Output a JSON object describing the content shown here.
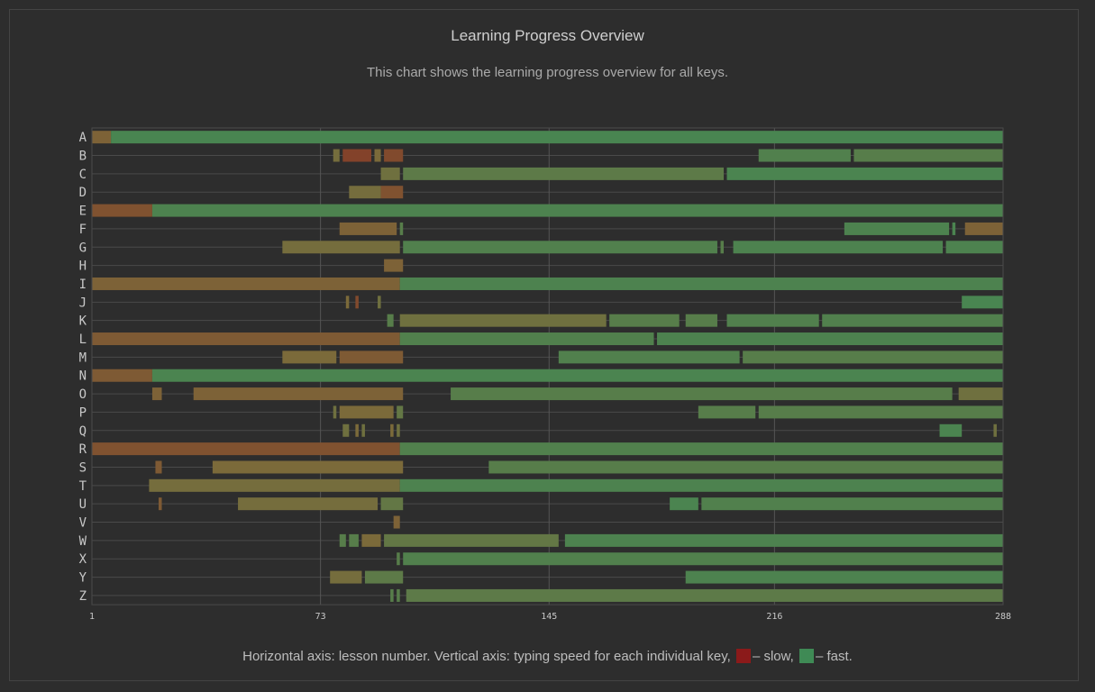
{
  "title": "Learning Progress Overview",
  "subtitle": "This chart shows the learning progress overview for all keys.",
  "footer": {
    "text_before": "Horizontal axis: lesson number. Vertical axis: typing speed for each individual key,",
    "slow_label": "– slow,",
    "fast_label": "– fast."
  },
  "colors": {
    "slow": "#8b1a1a",
    "fast": "#3f8a55",
    "mid": "#7b6a3a",
    "grid": "#555555",
    "text": "#c8c8c8"
  },
  "chart_data": {
    "type": "heatmap",
    "x_ticks": [
      1,
      73,
      145,
      216,
      288
    ],
    "x_range": [
      1,
      288
    ],
    "rows": [
      {
        "key": "A",
        "segments": [
          {
            "start": 1,
            "end": 7,
            "speed": 0.45
          },
          {
            "start": 7,
            "end": 288,
            "speed": 0.92
          }
        ]
      },
      {
        "key": "B",
        "segments": [
          {
            "start": 77,
            "end": 79,
            "speed": 0.55
          },
          {
            "start": 80,
            "end": 89,
            "speed": 0.25
          },
          {
            "start": 90,
            "end": 92,
            "speed": 0.5
          },
          {
            "start": 93,
            "end": 99,
            "speed": 0.3
          },
          {
            "start": 211,
            "end": 240,
            "speed": 0.85
          },
          {
            "start": 241,
            "end": 288,
            "speed": 0.8
          }
        ]
      },
      {
        "key": "C",
        "segments": [
          {
            "start": 92,
            "end": 98,
            "speed": 0.6
          },
          {
            "start": 99,
            "end": 200,
            "speed": 0.75
          },
          {
            "start": 201,
            "end": 288,
            "speed": 0.9
          }
        ]
      },
      {
        "key": "D",
        "segments": [
          {
            "start": 82,
            "end": 92,
            "speed": 0.55
          },
          {
            "start": 92,
            "end": 99,
            "speed": 0.35
          }
        ]
      },
      {
        "key": "E",
        "segments": [
          {
            "start": 1,
            "end": 20,
            "speed": 0.35
          },
          {
            "start": 20,
            "end": 288,
            "speed": 0.88
          }
        ]
      },
      {
        "key": "F",
        "segments": [
          {
            "start": 79,
            "end": 97,
            "speed": 0.45
          },
          {
            "start": 98,
            "end": 99,
            "speed": 0.8
          },
          {
            "start": 238,
            "end": 271,
            "speed": 0.88
          },
          {
            "start": 272,
            "end": 273,
            "speed": 0.9
          },
          {
            "start": 276,
            "end": 288,
            "speed": 0.45
          }
        ]
      },
      {
        "key": "G",
        "segments": [
          {
            "start": 61,
            "end": 98,
            "speed": 0.55
          },
          {
            "start": 99,
            "end": 198,
            "speed": 0.85
          },
          {
            "start": 199,
            "end": 200,
            "speed": 0.8
          },
          {
            "start": 203,
            "end": 269,
            "speed": 0.88
          },
          {
            "start": 270,
            "end": 288,
            "speed": 0.88
          }
        ]
      },
      {
        "key": "H",
        "segments": [
          {
            "start": 93,
            "end": 99,
            "speed": 0.45
          }
        ]
      },
      {
        "key": "I",
        "segments": [
          {
            "start": 1,
            "end": 98,
            "speed": 0.45
          },
          {
            "start": 98,
            "end": 288,
            "speed": 0.88
          }
        ]
      },
      {
        "key": "J",
        "segments": [
          {
            "start": 81,
            "end": 82,
            "speed": 0.5
          },
          {
            "start": 84,
            "end": 85,
            "speed": 0.3
          },
          {
            "start": 91,
            "end": 92,
            "speed": 0.6
          },
          {
            "start": 275,
            "end": 288,
            "speed": 0.92
          }
        ]
      },
      {
        "key": "K",
        "segments": [
          {
            "start": 94,
            "end": 96,
            "speed": 0.8
          },
          {
            "start": 98,
            "end": 163,
            "speed": 0.6
          },
          {
            "start": 164,
            "end": 186,
            "speed": 0.8
          },
          {
            "start": 188,
            "end": 198,
            "speed": 0.8
          },
          {
            "start": 201,
            "end": 230,
            "speed": 0.85
          },
          {
            "start": 231,
            "end": 288,
            "speed": 0.85
          }
        ]
      },
      {
        "key": "L",
        "segments": [
          {
            "start": 1,
            "end": 98,
            "speed": 0.4
          },
          {
            "start": 98,
            "end": 178,
            "speed": 0.85
          },
          {
            "start": 179,
            "end": 288,
            "speed": 0.88
          }
        ]
      },
      {
        "key": "M",
        "segments": [
          {
            "start": 61,
            "end": 78,
            "speed": 0.5
          },
          {
            "start": 79,
            "end": 99,
            "speed": 0.4
          },
          {
            "start": 148,
            "end": 205,
            "speed": 0.85
          },
          {
            "start": 206,
            "end": 288,
            "speed": 0.8
          }
        ]
      },
      {
        "key": "N",
        "segments": [
          {
            "start": 1,
            "end": 20,
            "speed": 0.4
          },
          {
            "start": 20,
            "end": 288,
            "speed": 0.9
          }
        ]
      },
      {
        "key": "O",
        "segments": [
          {
            "start": 20,
            "end": 23,
            "speed": 0.45
          },
          {
            "start": 33,
            "end": 99,
            "speed": 0.45
          },
          {
            "start": 114,
            "end": 272,
            "speed": 0.8
          },
          {
            "start": 274,
            "end": 288,
            "speed": 0.6
          }
        ]
      },
      {
        "key": "P",
        "segments": [
          {
            "start": 77,
            "end": 78,
            "speed": 0.6
          },
          {
            "start": 79,
            "end": 96,
            "speed": 0.5
          },
          {
            "start": 97,
            "end": 99,
            "speed": 0.7
          },
          {
            "start": 192,
            "end": 210,
            "speed": 0.8
          },
          {
            "start": 211,
            "end": 288,
            "speed": 0.8
          }
        ]
      },
      {
        "key": "Q",
        "segments": [
          {
            "start": 80,
            "end": 82,
            "speed": 0.6
          },
          {
            "start": 84,
            "end": 85,
            "speed": 0.5
          },
          {
            "start": 86,
            "end": 87,
            "speed": 0.6
          },
          {
            "start": 95,
            "end": 96,
            "speed": 0.5
          },
          {
            "start": 97,
            "end": 98,
            "speed": 0.6
          },
          {
            "start": 268,
            "end": 275,
            "speed": 0.9
          },
          {
            "start": 285,
            "end": 286,
            "speed": 0.6
          }
        ]
      },
      {
        "key": "R",
        "segments": [
          {
            "start": 1,
            "end": 98,
            "speed": 0.35
          },
          {
            "start": 98,
            "end": 288,
            "speed": 0.85
          }
        ]
      },
      {
        "key": "S",
        "segments": [
          {
            "start": 21,
            "end": 23,
            "speed": 0.4
          },
          {
            "start": 39,
            "end": 99,
            "speed": 0.5
          },
          {
            "start": 126,
            "end": 288,
            "speed": 0.8
          }
        ]
      },
      {
        "key": "T",
        "segments": [
          {
            "start": 19,
            "end": 98,
            "speed": 0.55
          },
          {
            "start": 98,
            "end": 288,
            "speed": 0.88
          }
        ]
      },
      {
        "key": "U",
        "segments": [
          {
            "start": 22,
            "end": 23,
            "speed": 0.4
          },
          {
            "start": 47,
            "end": 91,
            "speed": 0.55
          },
          {
            "start": 92,
            "end": 99,
            "speed": 0.7
          },
          {
            "start": 183,
            "end": 192,
            "speed": 0.9
          },
          {
            "start": 193,
            "end": 288,
            "speed": 0.85
          }
        ]
      },
      {
        "key": "V",
        "segments": [
          {
            "start": 96,
            "end": 98,
            "speed": 0.45
          }
        ]
      },
      {
        "key": "W",
        "segments": [
          {
            "start": 79,
            "end": 81,
            "speed": 0.8
          },
          {
            "start": 82,
            "end": 85,
            "speed": 0.8
          },
          {
            "start": 86,
            "end": 92,
            "speed": 0.5
          },
          {
            "start": 93,
            "end": 148,
            "speed": 0.7
          },
          {
            "start": 150,
            "end": 288,
            "speed": 0.88
          }
        ]
      },
      {
        "key": "X",
        "segments": [
          {
            "start": 97,
            "end": 98,
            "speed": 0.8
          },
          {
            "start": 99,
            "end": 288,
            "speed": 0.85
          }
        ]
      },
      {
        "key": "Y",
        "segments": [
          {
            "start": 76,
            "end": 86,
            "speed": 0.55
          },
          {
            "start": 87,
            "end": 99,
            "speed": 0.75
          },
          {
            "start": 188,
            "end": 288,
            "speed": 0.88
          }
        ]
      },
      {
        "key": "Z",
        "segments": [
          {
            "start": 95,
            "end": 96,
            "speed": 0.8
          },
          {
            "start": 97,
            "end": 98,
            "speed": 0.8
          },
          {
            "start": 100,
            "end": 288,
            "speed": 0.75
          }
        ]
      }
    ]
  }
}
